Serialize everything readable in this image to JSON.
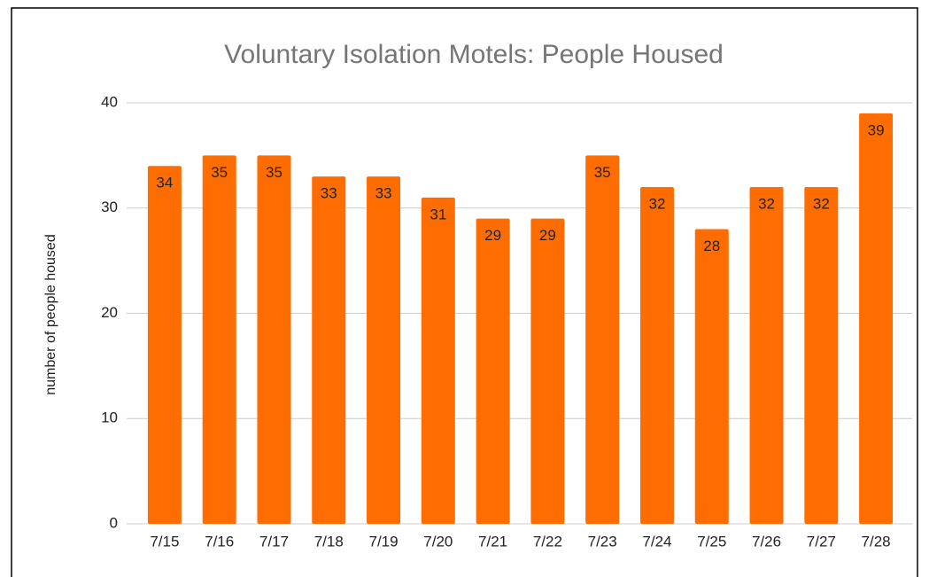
{
  "chart_data": {
    "type": "bar",
    "title": "Voluntary Isolation Motels: People Housed",
    "y_label": "number of people housed",
    "categories": [
      "7/15",
      "7/16",
      "7/17",
      "7/18",
      "7/19",
      "7/20",
      "7/21",
      "7/22",
      "7/23",
      "7/24",
      "7/25",
      "7/26",
      "7/27",
      "7/28"
    ],
    "values": [
      34,
      35,
      35,
      33,
      33,
      31,
      29,
      29,
      35,
      32,
      28,
      32,
      32,
      39
    ],
    "color": "#ff6d01",
    "ylim": [
      0,
      40
    ],
    "yticks": [
      0,
      10,
      20,
      30,
      40
    ],
    "grid": true
  }
}
